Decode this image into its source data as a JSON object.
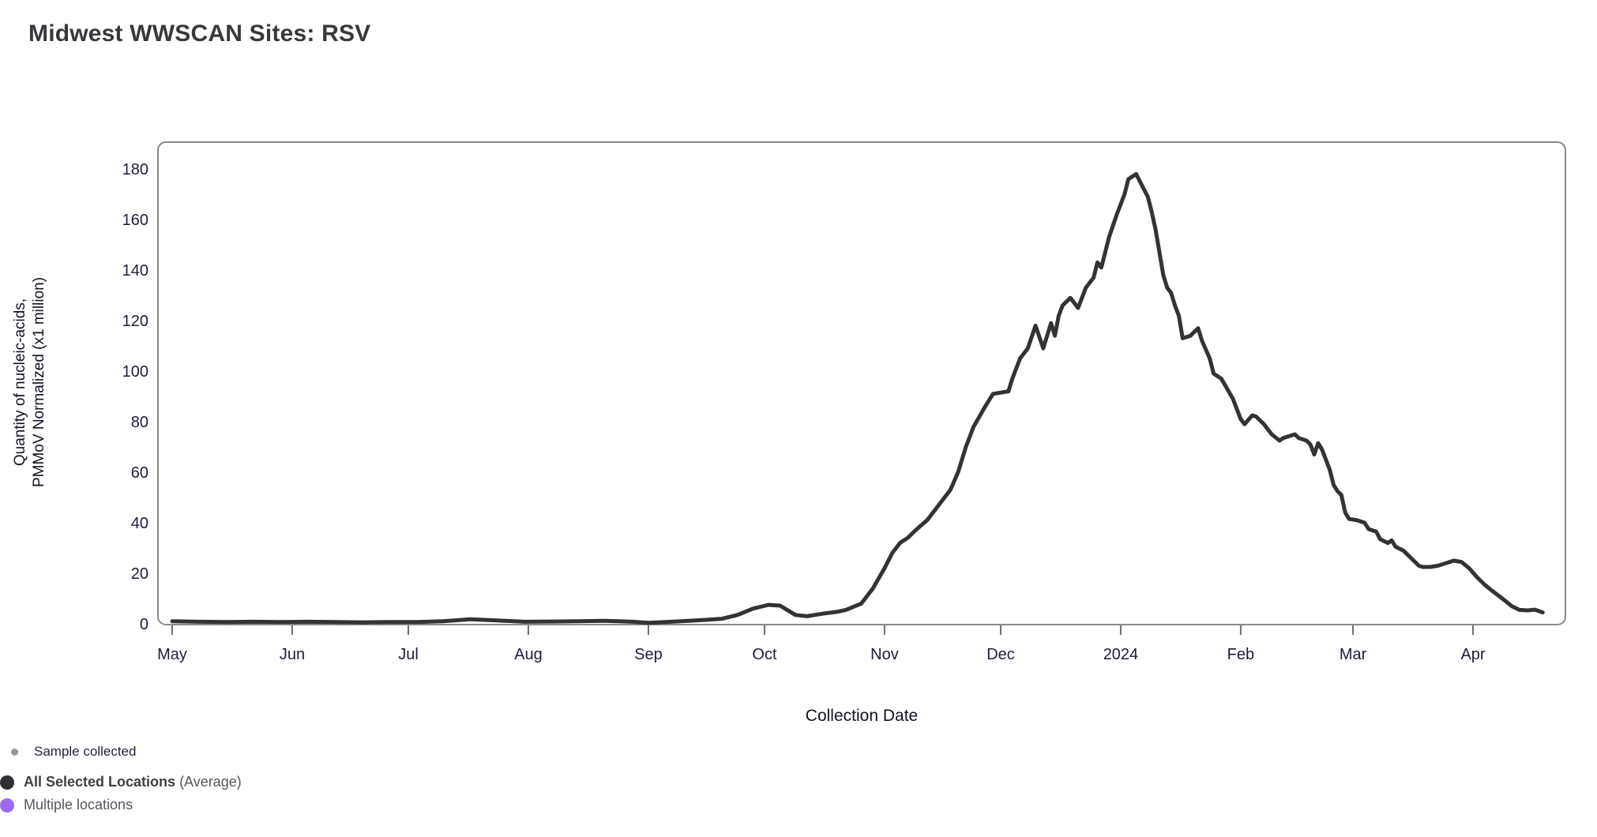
{
  "title": "Midwest WWSCAN Sites: RSV",
  "colors": {
    "line": "#333333",
    "chart_border": "#8a8a8a",
    "tick_mark": "#6e6e73",
    "tick_text": "#1c1e3a",
    "dot_sample_gray": "#9898a2",
    "dot_black": "#2e2e33",
    "dot_purple": "#9b6cf1"
  },
  "axes": {
    "xlabel": "Collection Date",
    "ylabel_line1": "Quantity of nucleic-acids,",
    "ylabel_line2": "PMMoV Normalized (x1 million)"
  },
  "legend": {
    "sample_label": "Sample collected",
    "all_locations_bold": "All Selected Locations",
    "all_locations_suffix": " (Average)",
    "multiple_label": "Multiple locations"
  },
  "chart_data": {
    "type": "line",
    "title": "Midwest WWSCAN Sites: RSV",
    "xlabel": "Collection Date",
    "ylabel": "Quantity of nucleic-acids, PMMoV Normalized (x1 million)",
    "ylim": [
      0,
      190
    ],
    "y_ticks": [
      0,
      20,
      40,
      60,
      80,
      100,
      120,
      140,
      160,
      180
    ],
    "grid": false,
    "legend_position": "bottom-left",
    "x_ticks": [
      {
        "date": "2023-05-01",
        "label": "May"
      },
      {
        "date": "2023-06-01",
        "label": "Jun"
      },
      {
        "date": "2023-07-01",
        "label": "Jul"
      },
      {
        "date": "2023-08-01",
        "label": "Aug"
      },
      {
        "date": "2023-09-01",
        "label": "Sep"
      },
      {
        "date": "2023-10-01",
        "label": "Oct"
      },
      {
        "date": "2023-11-01",
        "label": "Nov"
      },
      {
        "date": "2023-12-01",
        "label": "Dec"
      },
      {
        "date": "2024-01-01",
        "label": "2024"
      },
      {
        "date": "2024-02-01",
        "label": "Feb"
      },
      {
        "date": "2024-03-01",
        "label": "Mar"
      },
      {
        "date": "2024-04-01",
        "label": "Apr"
      }
    ],
    "series": [
      {
        "name": "All Selected Locations (Average)",
        "color": "#333333",
        "points": [
          [
            "2023-05-01",
            1.0
          ],
          [
            "2023-05-08",
            0.8
          ],
          [
            "2023-05-15",
            0.7
          ],
          [
            "2023-05-22",
            0.8
          ],
          [
            "2023-05-29",
            0.7
          ],
          [
            "2023-06-05",
            0.8
          ],
          [
            "2023-06-12",
            0.7
          ],
          [
            "2023-06-19",
            0.6
          ],
          [
            "2023-06-26",
            0.7
          ],
          [
            "2023-07-03",
            0.7
          ],
          [
            "2023-07-10",
            1.0
          ],
          [
            "2023-07-17",
            1.8
          ],
          [
            "2023-07-24",
            1.3
          ],
          [
            "2023-07-31",
            0.8
          ],
          [
            "2023-08-07",
            0.9
          ],
          [
            "2023-08-14",
            1.0
          ],
          [
            "2023-08-21",
            1.2
          ],
          [
            "2023-08-28",
            0.8
          ],
          [
            "2023-09-01",
            0.4
          ],
          [
            "2023-09-08",
            0.9
          ],
          [
            "2023-09-15",
            1.5
          ],
          [
            "2023-09-20",
            2.0
          ],
          [
            "2023-09-24",
            3.5
          ],
          [
            "2023-09-28",
            6.0
          ],
          [
            "2023-10-02",
            7.5
          ],
          [
            "2023-10-05",
            7.2
          ],
          [
            "2023-10-09",
            3.5
          ],
          [
            "2023-10-12",
            3.0
          ],
          [
            "2023-10-16",
            4.0
          ],
          [
            "2023-10-20",
            4.8
          ],
          [
            "2023-10-22",
            5.5
          ],
          [
            "2023-10-26",
            8.0
          ],
          [
            "2023-10-29",
            14.0
          ],
          [
            "2023-11-01",
            22.0
          ],
          [
            "2023-11-03",
            28.0
          ],
          [
            "2023-11-05",
            32.0
          ],
          [
            "2023-11-07",
            34.0
          ],
          [
            "2023-11-09",
            37.0
          ],
          [
            "2023-11-12",
            41.0
          ],
          [
            "2023-11-14",
            45.0
          ],
          [
            "2023-11-16",
            49.0
          ],
          [
            "2023-11-18",
            53.0
          ],
          [
            "2023-11-20",
            60.0
          ],
          [
            "2023-11-22",
            70.0
          ],
          [
            "2023-11-24",
            78.0
          ],
          [
            "2023-11-27",
            86.0
          ],
          [
            "2023-11-29",
            91.0
          ],
          [
            "2023-12-01",
            91.5
          ],
          [
            "2023-12-03",
            92.0
          ],
          [
            "2023-12-04",
            97.0
          ],
          [
            "2023-12-06",
            105.0
          ],
          [
            "2023-12-08",
            109.0
          ],
          [
            "2023-12-10",
            118.0
          ],
          [
            "2023-12-12",
            109.0
          ],
          [
            "2023-12-14",
            119.0
          ],
          [
            "2023-12-15",
            114.0
          ],
          [
            "2023-12-16",
            122.0
          ],
          [
            "2023-12-17",
            126.0
          ],
          [
            "2023-12-19",
            129.0
          ],
          [
            "2023-12-21",
            125.0
          ],
          [
            "2023-12-22",
            129.0
          ],
          [
            "2023-12-23",
            133.0
          ],
          [
            "2023-12-25",
            137.0
          ],
          [
            "2023-12-26",
            143.0
          ],
          [
            "2023-12-27",
            141.0
          ],
          [
            "2023-12-29",
            153.0
          ],
          [
            "2023-12-31",
            162.0
          ],
          [
            "2024-01-02",
            170.0
          ],
          [
            "2024-01-03",
            176.0
          ],
          [
            "2024-01-05",
            178.0
          ],
          [
            "2024-01-07",
            172.0
          ],
          [
            "2024-01-08",
            169.0
          ],
          [
            "2024-01-09",
            163.0
          ],
          [
            "2024-01-10",
            156.0
          ],
          [
            "2024-01-11",
            147.0
          ],
          [
            "2024-01-12",
            138.0
          ],
          [
            "2024-01-13",
            133.0
          ],
          [
            "2024-01-14",
            131.0
          ],
          [
            "2024-01-15",
            126.0
          ],
          [
            "2024-01-16",
            122.0
          ],
          [
            "2024-01-17",
            113.0
          ],
          [
            "2024-01-19",
            114.0
          ],
          [
            "2024-01-21",
            117.0
          ],
          [
            "2024-01-22",
            112.0
          ],
          [
            "2024-01-24",
            105.0
          ],
          [
            "2024-01-25",
            99.0
          ],
          [
            "2024-01-27",
            97.0
          ],
          [
            "2024-01-30",
            89.0
          ],
          [
            "2024-02-01",
            81.0
          ],
          [
            "2024-02-02",
            79.0
          ],
          [
            "2024-02-04",
            82.5
          ],
          [
            "2024-02-05",
            82.0
          ],
          [
            "2024-02-07",
            79.0
          ],
          [
            "2024-02-09",
            75.0
          ],
          [
            "2024-02-11",
            72.5
          ],
          [
            "2024-02-12",
            73.5
          ],
          [
            "2024-02-15",
            75.0
          ],
          [
            "2024-02-16",
            73.5
          ],
          [
            "2024-02-18",
            72.5
          ],
          [
            "2024-02-19",
            71.0
          ],
          [
            "2024-02-20",
            67.0
          ],
          [
            "2024-02-21",
            71.5
          ],
          [
            "2024-02-22",
            69.0
          ],
          [
            "2024-02-23",
            65.0
          ],
          [
            "2024-02-24",
            61.0
          ],
          [
            "2024-02-25",
            55.0
          ],
          [
            "2024-02-26",
            52.5
          ],
          [
            "2024-02-27",
            51.0
          ],
          [
            "2024-02-28",
            44.0
          ],
          [
            "2024-02-29",
            41.5
          ],
          [
            "2024-03-02",
            41.0
          ],
          [
            "2024-03-04",
            40.0
          ],
          [
            "2024-03-05",
            37.5
          ],
          [
            "2024-03-07",
            36.5
          ],
          [
            "2024-03-08",
            33.5
          ],
          [
            "2024-03-10",
            32.0
          ],
          [
            "2024-03-11",
            33.0
          ],
          [
            "2024-03-12",
            30.5
          ],
          [
            "2024-03-14",
            29.0
          ],
          [
            "2024-03-16",
            26.0
          ],
          [
            "2024-03-18",
            23.0
          ],
          [
            "2024-03-19",
            22.5
          ],
          [
            "2024-03-21",
            22.5
          ],
          [
            "2024-03-23",
            23.0
          ],
          [
            "2024-03-25",
            24.0
          ],
          [
            "2024-03-27",
            25.0
          ],
          [
            "2024-03-29",
            24.5
          ],
          [
            "2024-03-31",
            22.0
          ],
          [
            "2024-04-02",
            18.5
          ],
          [
            "2024-04-04",
            15.5
          ],
          [
            "2024-04-06",
            13.0
          ],
          [
            "2024-04-09",
            9.5
          ],
          [
            "2024-04-11",
            7.0
          ],
          [
            "2024-04-13",
            5.5
          ],
          [
            "2024-04-15",
            5.3
          ],
          [
            "2024-04-17",
            5.6
          ],
          [
            "2024-04-19",
            4.5
          ]
        ]
      }
    ]
  }
}
